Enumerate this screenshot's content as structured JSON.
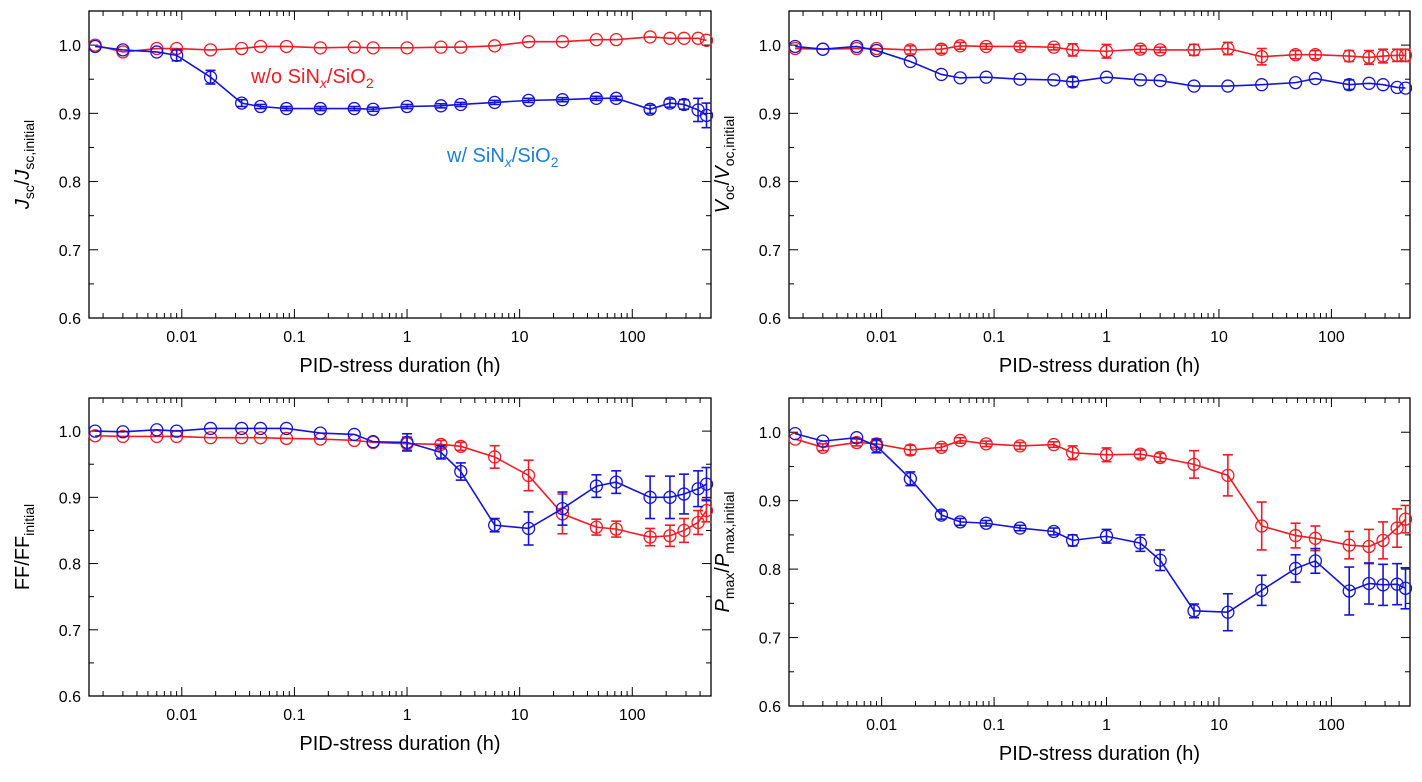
{
  "figure": {
    "xlabel": "PID-stress duration (h)",
    "legend_red": "w/o SiN",
    "legend_blue": "w/ SiN",
    "legend_sub_x": "x",
    "legend_mid": "/SiO",
    "legend_sub_2": "2",
    "colors": {
      "red": "#ee1c25",
      "blue": "#1414d6",
      "legend_blue": "#1e7fd4"
    }
  },
  "chart_data": [
    {
      "type": "line",
      "panel": "top-left",
      "ylabel": "Jsc/Jsc,initial",
      "ylabel_parts": {
        "main1": "J",
        "sub1": "sc",
        "mid": "/",
        "main2": "J",
        "sub2": "sc,initial"
      },
      "xlabel": "PID-stress duration (h)",
      "xscale": "log",
      "xlim": [
        0.0015,
        500
      ],
      "ylim": [
        0.6,
        1.05
      ],
      "xticks": [
        "0.01",
        "0.1",
        "1",
        "10",
        "100"
      ],
      "yticks": [
        "0.6",
        "0.7",
        "0.8",
        "0.9",
        "1.0"
      ],
      "x": [
        0.0017,
        0.003,
        0.006,
        0.009,
        0.018,
        0.034,
        0.05,
        0.085,
        0.17,
        0.34,
        0.5,
        1,
        2,
        3,
        6,
        12,
        24,
        48,
        72,
        144,
        216,
        288,
        384,
        456
      ],
      "series": [
        {
          "name": "w/o SiNx/SiO2",
          "color": "red",
          "values": [
            1.0,
            0.99,
            0.995,
            0.995,
            0.993,
            0.995,
            0.998,
            0.998,
            0.996,
            0.997,
            0.996,
            0.996,
            0.997,
            0.997,
            0.999,
            1.005,
            1.005,
            1.008,
            1.008,
            1.012,
            1.01,
            1.01,
            1.01,
            1.007
          ],
          "errors": [
            0,
            0,
            0,
            0,
            0,
            0,
            0,
            0,
            0,
            0,
            0,
            0,
            0,
            0,
            0,
            0,
            0,
            0,
            0,
            0,
            0,
            0,
            0,
            0
          ]
        },
        {
          "name": "w/ SiNx/SiO2",
          "color": "blue",
          "values": [
            0.998,
            0.993,
            0.99,
            0.985,
            0.953,
            0.915,
            0.91,
            0.907,
            0.907,
            0.907,
            0.906,
            0.91,
            0.911,
            0.913,
            0.916,
            0.919,
            0.92,
            0.922,
            0.922,
            0.906,
            0.915,
            0.913,
            0.905,
            0.897
          ],
          "errors": [
            0,
            0,
            0,
            0.008,
            0.01,
            0.005,
            0.003,
            0.003,
            0.003,
            0.003,
            0.003,
            0.003,
            0.003,
            0.003,
            0.003,
            0.003,
            0.003,
            0.003,
            0.003,
            0.006,
            0.006,
            0.007,
            0.017,
            0.018
          ]
        }
      ]
    },
    {
      "type": "line",
      "panel": "top-right",
      "ylabel": "Voc/Voc,initial",
      "ylabel_parts": {
        "main1": "V",
        "sub1": "oc",
        "mid": "/",
        "main2": "V",
        "sub2": "oc,initial"
      },
      "xlabel": "PID-stress duration (h)",
      "xscale": "log",
      "xlim": [
        0.0015,
        500
      ],
      "ylim": [
        0.6,
        1.05
      ],
      "xticks": [
        "0.01",
        "0.1",
        "1",
        "10",
        "100"
      ],
      "yticks": [
        "0.6",
        "0.7",
        "0.8",
        "0.9",
        "1.0"
      ],
      "x": [
        0.0017,
        0.003,
        0.006,
        0.009,
        0.018,
        0.034,
        0.05,
        0.085,
        0.17,
        0.34,
        0.5,
        1,
        2,
        3,
        6,
        12,
        24,
        48,
        72,
        144,
        216,
        288,
        384,
        456
      ],
      "series": [
        {
          "name": "w/o SiNx/SiO2",
          "color": "red",
          "values": [
            0.995,
            0.994,
            0.995,
            0.995,
            0.993,
            0.994,
            0.999,
            0.998,
            0.998,
            0.997,
            0.993,
            0.991,
            0.994,
            0.993,
            0.993,
            0.995,
            0.983,
            0.986,
            0.986,
            0.984,
            0.982,
            0.984,
            0.985,
            0.985
          ],
          "errors": [
            0,
            0,
            0,
            0,
            0.006,
            0.006,
            0.005,
            0.004,
            0.005,
            0.004,
            0.009,
            0.01,
            0.005,
            0.004,
            0.008,
            0.009,
            0.012,
            0.006,
            0.006,
            0.008,
            0.01,
            0.01,
            0.009,
            0.009
          ]
        },
        {
          "name": "w/ SiNx/SiO2",
          "color": "blue",
          "values": [
            0.998,
            0.994,
            0.998,
            0.992,
            0.976,
            0.957,
            0.952,
            0.953,
            0.95,
            0.949,
            0.946,
            0.953,
            0.949,
            0.948,
            0.94,
            0.94,
            0.942,
            0.945,
            0.951,
            0.942,
            0.944,
            0.942,
            0.938,
            0.937
          ],
          "errors": [
            0,
            0,
            0,
            0,
            0,
            0,
            0,
            0,
            0,
            0,
            0.007,
            0,
            0,
            0,
            0,
            0,
            0,
            0,
            0,
            0.007,
            0,
            0,
            0,
            0
          ]
        }
      ]
    },
    {
      "type": "line",
      "panel": "bottom-left",
      "ylabel": "FF/FFinitial",
      "ylabel_parts": {
        "main1": "FF",
        "sub1": "",
        "mid": "/",
        "main2": "FF",
        "sub2": "initial"
      },
      "xlabel": "PID-stress duration (h)",
      "xscale": "log",
      "xlim": [
        0.0015,
        500
      ],
      "ylim": [
        0.6,
        1.05
      ],
      "xticks": [
        "0.01",
        "0.1",
        "1",
        "10",
        "100"
      ],
      "yticks": [
        "0.6",
        "0.7",
        "0.8",
        "0.9",
        "1.0"
      ],
      "x": [
        0.0017,
        0.003,
        0.006,
        0.009,
        0.018,
        0.034,
        0.05,
        0.085,
        0.17,
        0.34,
        0.5,
        1,
        2,
        3,
        6,
        12,
        24,
        48,
        72,
        144,
        216,
        288,
        384,
        456
      ],
      "series": [
        {
          "name": "w/o SiNx/SiO2",
          "color": "red",
          "values": [
            0.993,
            0.992,
            0.992,
            0.992,
            0.99,
            0.99,
            0.99,
            0.989,
            0.988,
            0.986,
            0.983,
            0.981,
            0.98,
            0.977,
            0.961,
            0.933,
            0.875,
            0.855,
            0.852,
            0.84,
            0.842,
            0.85,
            0.862,
            0.88
          ],
          "errors": [
            0,
            0,
            0,
            0,
            0,
            0,
            0,
            0,
            0,
            0,
            0,
            0.01,
            0.006,
            0.006,
            0.017,
            0.023,
            0.03,
            0.012,
            0.012,
            0.013,
            0.016,
            0.018,
            0.018,
            0.017
          ]
        },
        {
          "name": "w/ SiNx/SiO2",
          "color": "blue",
          "values": [
            1.0,
            0.999,
            1.002,
            1.0,
            1.004,
            1.004,
            1.004,
            1.004,
            0.997,
            0.995,
            0.984,
            0.983,
            0.968,
            0.939,
            0.858,
            0.853,
            0.883,
            0.917,
            0.923,
            0.9,
            0.9,
            0.905,
            0.913,
            0.92
          ],
          "errors": [
            0,
            0,
            0,
            0,
            0,
            0,
            0,
            0,
            0,
            0,
            0,
            0.013,
            0.01,
            0.013,
            0.01,
            0.025,
            0.025,
            0.017,
            0.017,
            0.032,
            0.032,
            0.03,
            0.027,
            0.025
          ]
        }
      ]
    },
    {
      "type": "line",
      "panel": "bottom-right",
      "ylabel": "Pmax/Pmax,initial",
      "ylabel_parts": {
        "main1": "P",
        "sub1": "max",
        "mid": "/",
        "main2": "P",
        "sub2": "max,initial"
      },
      "xlabel": "PID-stress duration (h)",
      "xscale": "log",
      "xlim": [
        0.0015,
        500
      ],
      "ylim": [
        0.6,
        1.05
      ],
      "xticks": [
        "0.01",
        "0.1",
        "1",
        "10",
        "100"
      ],
      "yticks": [
        "0.6",
        "0.7",
        "0.8",
        "0.9",
        "1.0"
      ],
      "x": [
        0.0017,
        0.003,
        0.006,
        0.009,
        0.018,
        0.034,
        0.05,
        0.085,
        0.17,
        0.34,
        0.5,
        1,
        2,
        3,
        6,
        12,
        24,
        48,
        72,
        144,
        216,
        288,
        384,
        456
      ],
      "series": [
        {
          "name": "w/o SiNx/SiO2",
          "color": "red",
          "values": [
            0.99,
            0.978,
            0.985,
            0.983,
            0.974,
            0.978,
            0.988,
            0.983,
            0.98,
            0.982,
            0.97,
            0.967,
            0.968,
            0.963,
            0.953,
            0.937,
            0.863,
            0.849,
            0.845,
            0.835,
            0.833,
            0.842,
            0.86,
            0.873
          ],
          "errors": [
            0,
            0.005,
            0.005,
            0.005,
            0.007,
            0.005,
            0.004,
            0.004,
            0.005,
            0.004,
            0.01,
            0.01,
            0.006,
            0.006,
            0.02,
            0.03,
            0.035,
            0.018,
            0.018,
            0.02,
            0.025,
            0.027,
            0.028,
            0.02
          ]
        },
        {
          "name": "w/ SiNx/SiO2",
          "color": "blue",
          "values": [
            0.998,
            0.987,
            0.992,
            0.98,
            0.932,
            0.879,
            0.869,
            0.867,
            0.86,
            0.855,
            0.842,
            0.848,
            0.838,
            0.813,
            0.739,
            0.737,
            0.769,
            0.801,
            0.812,
            0.768,
            0.779,
            0.777,
            0.778,
            0.772
          ],
          "errors": [
            0,
            0,
            0,
            0.01,
            0.01,
            0.006,
            0.005,
            0.004,
            0.004,
            0.005,
            0.008,
            0.01,
            0.012,
            0.015,
            0.01,
            0.027,
            0.022,
            0.02,
            0.018,
            0.035,
            0.03,
            0.03,
            0.03,
            0.03
          ]
        }
      ]
    }
  ]
}
